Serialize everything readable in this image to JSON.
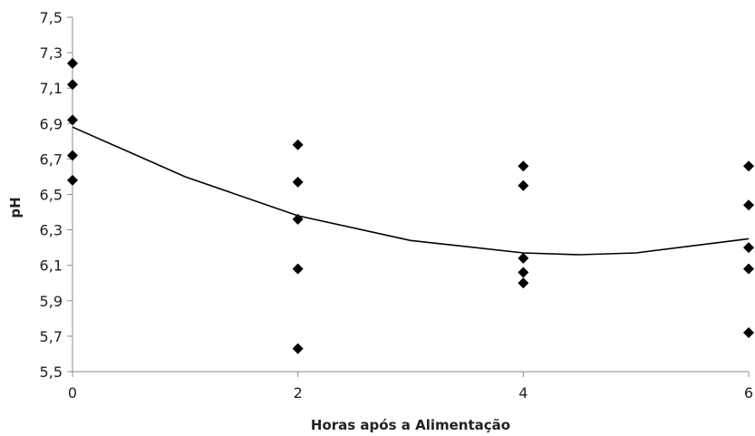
{
  "chart_data": {
    "type": "scatter",
    "title": "",
    "xlabel": "Horas após a Alimentação",
    "ylabel": "pH",
    "xlim": [
      0,
      6
    ],
    "ylim": [
      5.5,
      7.5
    ],
    "x_ticks": [
      {
        "value": 0,
        "label": "0"
      },
      {
        "value": 2,
        "label": "2"
      },
      {
        "value": 4,
        "label": "4"
      },
      {
        "value": 6,
        "label": "6"
      }
    ],
    "y_ticks": [
      {
        "value": 5.5,
        "label": "5,5"
      },
      {
        "value": 5.7,
        "label": "5,7"
      },
      {
        "value": 5.9,
        "label": "5,9"
      },
      {
        "value": 6.1,
        "label": "6,1"
      },
      {
        "value": 6.3,
        "label": "6,3"
      },
      {
        "value": 6.5,
        "label": "6,5"
      },
      {
        "value": 6.7,
        "label": "6,7"
      },
      {
        "value": 6.9,
        "label": "6,9"
      },
      {
        "value": 7.1,
        "label": "7,1"
      },
      {
        "value": 7.3,
        "label": "7,3"
      },
      {
        "value": 7.5,
        "label": "7,5"
      }
    ],
    "grid": false,
    "legend": "none",
    "points": [
      {
        "x": 0,
        "y": 7.24
      },
      {
        "x": 0,
        "y": 7.12
      },
      {
        "x": 0,
        "y": 6.92
      },
      {
        "x": 0,
        "y": 6.72
      },
      {
        "x": 0,
        "y": 6.58
      },
      {
        "x": 2,
        "y": 6.78
      },
      {
        "x": 2,
        "y": 6.57
      },
      {
        "x": 2,
        "y": 6.36
      },
      {
        "x": 2,
        "y": 6.08
      },
      {
        "x": 2,
        "y": 5.63
      },
      {
        "x": 4,
        "y": 6.66
      },
      {
        "x": 4,
        "y": 6.55
      },
      {
        "x": 4,
        "y": 6.14
      },
      {
        "x": 4,
        "y": 6.06
      },
      {
        "x": 4,
        "y": 6.0
      },
      {
        "x": 6,
        "y": 6.66
      },
      {
        "x": 6,
        "y": 6.44
      },
      {
        "x": 6,
        "y": 6.2
      },
      {
        "x": 6,
        "y": 6.08
      },
      {
        "x": 6,
        "y": 5.72
      }
    ],
    "trendline": {
      "type": "polynomial",
      "order": 2,
      "points": [
        {
          "x": 0,
          "y": 6.88
        },
        {
          "x": 1,
          "y": 6.6
        },
        {
          "x": 2,
          "y": 6.38
        },
        {
          "x": 3,
          "y": 6.24
        },
        {
          "x": 4,
          "y": 6.17
        },
        {
          "x": 4.5,
          "y": 6.16
        },
        {
          "x": 5,
          "y": 6.17
        },
        {
          "x": 6,
          "y": 6.25
        }
      ]
    },
    "colors": {
      "marker": "#000000",
      "axis": "#8c8c8c",
      "trendline": "#000000"
    }
  }
}
